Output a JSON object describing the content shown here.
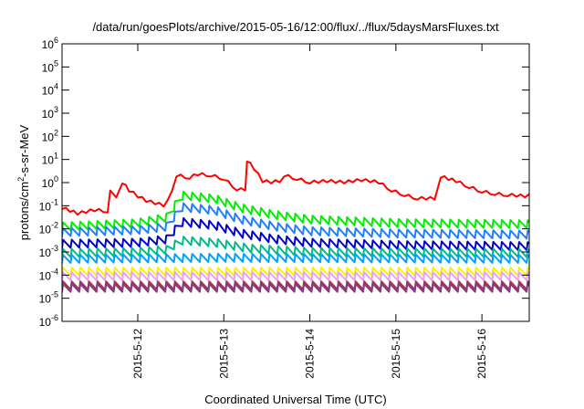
{
  "chart_data": {
    "type": "line",
    "title": "/data/run/goesPlots/archive/2015-05-16/12:00/flux/../flux/5daysMarsFluxes.txt",
    "xlabel": "Coordinated Universal Time (UTC)",
    "ylabel": {
      "base": "protons/cm",
      "sup": "2",
      "rest": "-s-sr-MeV"
    },
    "y_scale": "log",
    "ylim_exp": [
      -6,
      6
    ],
    "y_ticks": [
      {
        "exp": "-6"
      },
      {
        "exp": "-5"
      },
      {
        "exp": "-4"
      },
      {
        "exp": "-3"
      },
      {
        "exp": "-2"
      },
      {
        "exp": "-1"
      },
      {
        "exp": "0"
      },
      {
        "exp": "1"
      },
      {
        "exp": "2"
      },
      {
        "exp": "3"
      },
      {
        "exp": "4"
      },
      {
        "exp": "5"
      },
      {
        "exp": "6"
      }
    ],
    "tick_base": "10",
    "xlim_days": [
      11.12,
      16.55
    ],
    "x_ticks": [
      {
        "label": "2015-5-12",
        "day": 12
      },
      {
        "label": "2015-5-13",
        "day": 13
      },
      {
        "label": "2015-5-14",
        "day": 14
      },
      {
        "label": "2015-5-15",
        "day": 15
      },
      {
        "label": "2015-5-16",
        "day": 16
      }
    ],
    "grid": false,
    "series": [
      {
        "color": "#ff0000",
        "width": 2,
        "sawtooth": false,
        "anchors": [
          [
            11.12,
            -1.1
          ],
          [
            11.3,
            -1.35
          ],
          [
            11.5,
            -1.2
          ],
          [
            11.65,
            -1.25
          ],
          [
            11.68,
            -0.3
          ],
          [
            11.75,
            -0.6
          ],
          [
            11.82,
            0.0
          ],
          [
            11.9,
            -0.35
          ],
          [
            12.0,
            -0.6
          ],
          [
            12.1,
            -0.8
          ],
          [
            12.2,
            -0.9
          ],
          [
            12.3,
            -1.0
          ],
          [
            12.35,
            -0.7
          ],
          [
            12.4,
            -0.3
          ],
          [
            12.45,
            0.3
          ],
          [
            12.6,
            0.2
          ],
          [
            12.7,
            0.35
          ],
          [
            12.85,
            0.3
          ],
          [
            13.0,
            0.15
          ],
          [
            13.15,
            -0.3
          ],
          [
            13.2,
            -0.2
          ],
          [
            13.25,
            -0.3
          ],
          [
            13.27,
            0.95
          ],
          [
            13.35,
            0.6
          ],
          [
            13.45,
            0.05
          ],
          [
            13.55,
            0.0
          ],
          [
            13.65,
            0.05
          ],
          [
            13.7,
            0.3
          ],
          [
            13.85,
            0.15
          ],
          [
            14.0,
            0.0
          ],
          [
            14.2,
            0.05
          ],
          [
            14.4,
            0.0
          ],
          [
            14.6,
            0.1
          ],
          [
            14.8,
            0.0
          ],
          [
            14.95,
            -0.35
          ],
          [
            15.1,
            -0.55
          ],
          [
            15.25,
            -0.7
          ],
          [
            15.45,
            -0.7
          ],
          [
            15.52,
            0.25
          ],
          [
            15.7,
            0.05
          ],
          [
            15.85,
            -0.2
          ],
          [
            16.0,
            -0.4
          ],
          [
            16.15,
            -0.5
          ],
          [
            16.3,
            -0.55
          ],
          [
            16.5,
            -0.6
          ],
          [
            16.55,
            -0.5
          ]
        ]
      },
      {
        "color": "#00ee00",
        "width": 2,
        "sawtooth": true,
        "amp": 0.35,
        "anchors": [
          [
            11.12,
            -1.9
          ],
          [
            12.0,
            -1.75
          ],
          [
            12.35,
            -1.5
          ],
          [
            12.5,
            -0.55
          ],
          [
            12.9,
            -0.7
          ],
          [
            13.2,
            -1.1
          ],
          [
            13.6,
            -1.4
          ],
          [
            14.0,
            -1.6
          ],
          [
            15.0,
            -1.75
          ],
          [
            16.55,
            -1.8
          ]
        ]
      },
      {
        "color": "#1f7fff",
        "width": 2,
        "sawtooth": true,
        "amp": 0.35,
        "anchors": [
          [
            11.12,
            -2.15
          ],
          [
            12.0,
            -2.05
          ],
          [
            12.35,
            -1.9
          ],
          [
            12.5,
            -1.05
          ],
          [
            12.9,
            -1.2
          ],
          [
            13.2,
            -1.6
          ],
          [
            13.6,
            -1.9
          ],
          [
            14.0,
            -2.1
          ],
          [
            15.0,
            -2.2
          ],
          [
            16.55,
            -2.25
          ]
        ]
      },
      {
        "color": "#0000c8",
        "width": 2,
        "sawtooth": true,
        "amp": 0.35,
        "anchors": [
          [
            11.12,
            -2.65
          ],
          [
            12.0,
            -2.6
          ],
          [
            12.35,
            -2.45
          ],
          [
            12.5,
            -1.7
          ],
          [
            12.9,
            -1.85
          ],
          [
            13.2,
            -2.2
          ],
          [
            13.6,
            -2.45
          ],
          [
            14.0,
            -2.6
          ],
          [
            15.0,
            -2.7
          ],
          [
            16.55,
            -2.75
          ]
        ]
      },
      {
        "color": "#00bb88",
        "width": 2,
        "sawtooth": true,
        "amp": 0.35,
        "anchors": [
          [
            11.12,
            -3.05
          ],
          [
            12.0,
            -3.0
          ],
          [
            12.35,
            -2.9
          ],
          [
            12.5,
            -2.5
          ],
          [
            12.9,
            -2.6
          ],
          [
            13.3,
            -2.85
          ],
          [
            14.0,
            -3.0
          ],
          [
            16.55,
            -3.05
          ]
        ]
      },
      {
        "color": "#00a0ff",
        "width": 2,
        "sawtooth": true,
        "amp": 0.35,
        "anchors": [
          [
            11.12,
            -3.3
          ],
          [
            13.0,
            -3.25
          ],
          [
            16.55,
            -3.3
          ]
        ]
      },
      {
        "color": "#ffee00",
        "width": 2,
        "sawtooth": true,
        "amp": 0.35,
        "anchors": [
          [
            11.12,
            -3.85
          ],
          [
            16.55,
            -3.85
          ]
        ]
      },
      {
        "color": "#e8a0ff",
        "width": 2,
        "sawtooth": true,
        "amp": 0.35,
        "anchors": [
          [
            11.12,
            -4.05
          ],
          [
            16.55,
            -4.05
          ]
        ]
      },
      {
        "color": "#b03050",
        "width": 2,
        "sawtooth": true,
        "amp": 0.35,
        "anchors": [
          [
            11.12,
            -4.45
          ],
          [
            16.55,
            -4.45
          ]
        ]
      },
      {
        "color": "#804080",
        "width": 2,
        "sawtooth": true,
        "amp": 0.35,
        "anchors": [
          [
            11.12,
            -4.55
          ],
          [
            16.55,
            -4.55
          ]
        ]
      }
    ],
    "sawtooth_period_days": 0.1
  }
}
